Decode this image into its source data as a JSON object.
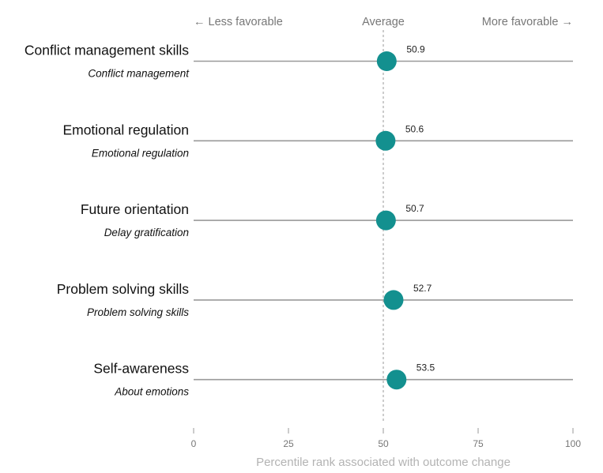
{
  "chart_data": {
    "type": "scatter",
    "header": {
      "left": "← Less favorable",
      "center": "Average",
      "right": "More favorable →"
    },
    "xlabel": "Percentile rank associated with outcome change",
    "xlim": [
      0,
      100
    ],
    "x_ticks": [
      "0",
      "25",
      "50",
      "75",
      "100"
    ],
    "reference_value": 50,
    "categories": [
      "Conflict management skills",
      "Emotional regulation",
      "Future orientation",
      "Problem solving skills",
      "Self-awareness"
    ],
    "subcategories": [
      "Conflict management",
      "Emotional regulation",
      "Delay gratification",
      "Problem solving skills",
      "About emotions"
    ],
    "values": [
      50.9,
      50.6,
      50.7,
      52.7,
      53.5
    ],
    "value_labels": [
      "50.9",
      "50.6",
      "50.7",
      "52.7",
      "53.5"
    ],
    "colors": {
      "marker": "#13908f",
      "row_line": "#9a9a9a",
      "reference_line": "#aaaaaa"
    },
    "grid": false
  }
}
